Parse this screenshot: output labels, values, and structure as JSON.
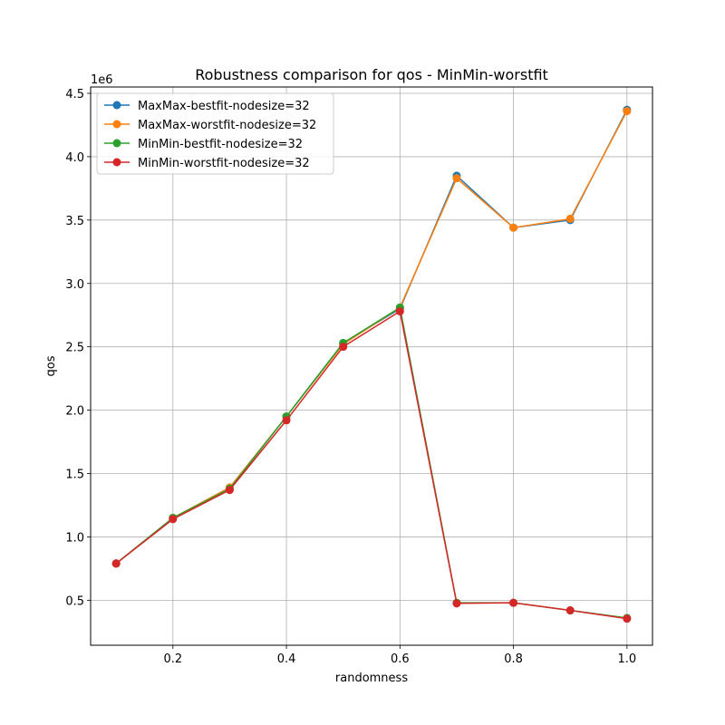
{
  "chart_data": {
    "type": "line",
    "title": "Robustness comparison for qos - MinMin-worstfit",
    "xlabel": "randomness",
    "ylabel": "qos",
    "y_offset_label": "1e6",
    "xlim": [
      0.055,
      1.045
    ],
    "ylim": [
      0.145,
      4.55
    ],
    "x_ticks": [
      0.2,
      0.4,
      0.6,
      0.8,
      1.0
    ],
    "x_tick_labels": [
      "0.2",
      "0.4",
      "0.6",
      "0.8",
      "1.0"
    ],
    "y_ticks": [
      0.5,
      1.0,
      1.5,
      2.0,
      2.5,
      3.0,
      3.5,
      4.0,
      4.5
    ],
    "y_tick_labels": [
      "0.5",
      "1.0",
      "1.5",
      "2.0",
      "2.5",
      "3.0",
      "3.5",
      "4.0",
      "4.5"
    ],
    "grid": true,
    "legend_position": "top-left",
    "x": [
      0.1,
      0.2,
      0.3,
      0.4,
      0.5,
      0.6,
      0.7,
      0.8,
      0.9,
      1.0
    ],
    "series": [
      {
        "name": "MaxMax-bestfit-nodesize=32",
        "color": "#1f77b4",
        "values": [
          0.79,
          1.15,
          1.38,
          1.95,
          2.53,
          2.8,
          3.85,
          3.44,
          3.5,
          4.37
        ]
      },
      {
        "name": "MaxMax-worstfit-nodesize=32",
        "color": "#ff7f0e",
        "values": [
          0.79,
          1.15,
          1.39,
          1.95,
          2.52,
          2.81,
          3.83,
          3.44,
          3.51,
          4.36
        ]
      },
      {
        "name": "MinMin-bestfit-nodesize=32",
        "color": "#2ca02c",
        "values": [
          0.79,
          1.15,
          1.38,
          1.95,
          2.53,
          2.81,
          0.48,
          0.48,
          0.42,
          0.36
        ]
      },
      {
        "name": "MinMin-worstfit-nodesize=32",
        "color": "#d62728",
        "values": [
          0.79,
          1.14,
          1.37,
          1.92,
          2.5,
          2.78,
          0.475,
          0.48,
          0.42,
          0.355
        ]
      }
    ]
  }
}
